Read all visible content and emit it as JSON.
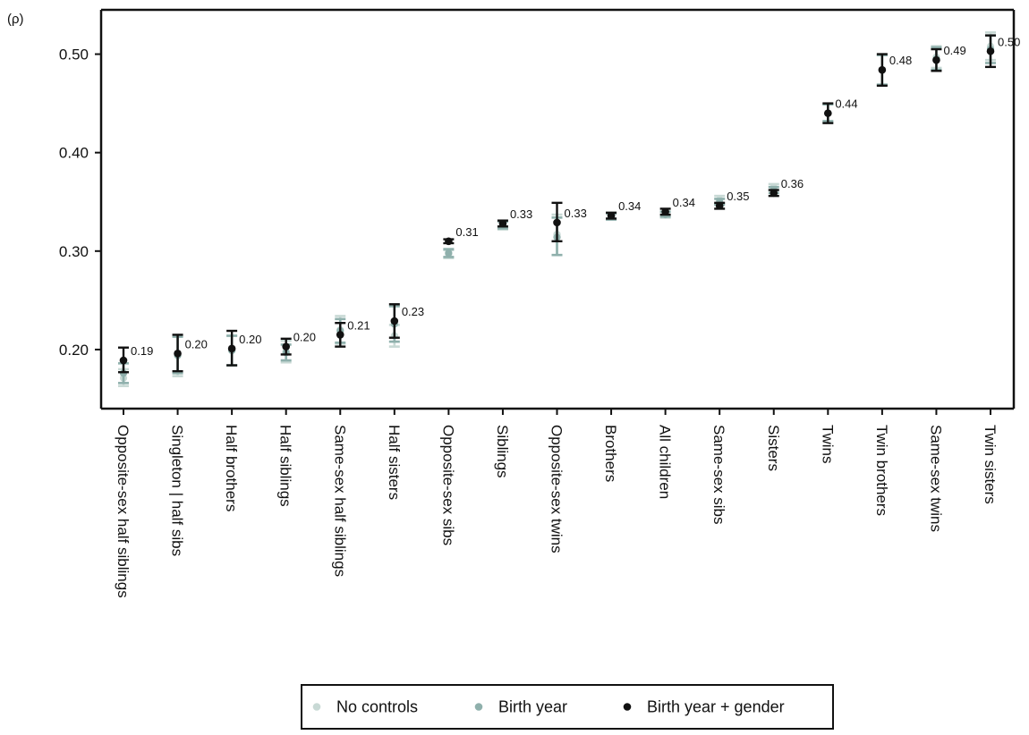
{
  "chart_data": {
    "type": "scatter",
    "y_unit": "(ρ)",
    "ylim": [
      0.14,
      0.545
    ],
    "y_ticks": [
      "0.20",
      "0.30",
      "0.40",
      "0.50"
    ],
    "grid": false,
    "legend_placement": "bottom-center",
    "categories": [
      "Opposite-sex half siblings",
      "Singleton | half sibs",
      "Half brothers",
      "Half siblings",
      "Same-sex half siblings",
      "Half sisters",
      "Opposite-sex sibs",
      "Siblings",
      "Opposite-sex twins",
      "Brothers",
      "All children",
      "Same-sex sibs",
      "Sisters",
      "Twins",
      "Twin brothers",
      "Same-sex twins",
      "Twin sisters"
    ],
    "series": [
      {
        "name": "No controls",
        "color": "#c8d9d5",
        "values": [
          0.171,
          0.194,
          0.199,
          0.198,
          0.22,
          0.214,
          0.297,
          0.326,
          0.317,
          0.336,
          0.337,
          0.352,
          0.365,
          0.44,
          0.484,
          0.497,
          0.508
        ],
        "ci_low": [
          0.163,
          0.173,
          0.184,
          0.187,
          0.206,
          0.203,
          0.293,
          0.322,
          0.296,
          0.333,
          0.334,
          0.348,
          0.362,
          0.431,
          0.469,
          0.486,
          0.494
        ],
        "ci_high": [
          0.18,
          0.214,
          0.214,
          0.209,
          0.234,
          0.225,
          0.301,
          0.33,
          0.337,
          0.339,
          0.34,
          0.356,
          0.368,
          0.449,
          0.499,
          0.508,
          0.522
        ]
      },
      {
        "name": "Birth year",
        "color": "#8fb0ac",
        "values": [
          0.176,
          0.194,
          0.199,
          0.197,
          0.219,
          0.226,
          0.298,
          0.326,
          0.314,
          0.335,
          0.337,
          0.35,
          0.362,
          0.44,
          0.484,
          0.495,
          0.505
        ],
        "ci_low": [
          0.166,
          0.176,
          0.184,
          0.189,
          0.207,
          0.208,
          0.294,
          0.323,
          0.296,
          0.332,
          0.335,
          0.347,
          0.359,
          0.432,
          0.469,
          0.484,
          0.491
        ],
        "ci_high": [
          0.186,
          0.213,
          0.214,
          0.205,
          0.231,
          0.244,
          0.302,
          0.33,
          0.334,
          0.338,
          0.34,
          0.353,
          0.365,
          0.449,
          0.499,
          0.507,
          0.519
        ]
      },
      {
        "name": "Birth year + gender",
        "color": "#111111",
        "values": [
          0.189,
          0.196,
          0.201,
          0.203,
          0.215,
          0.229,
          0.31,
          0.328,
          0.329,
          0.336,
          0.34,
          0.346,
          0.359,
          0.44,
          0.484,
          0.494,
          0.503
        ],
        "ci_low": [
          0.177,
          0.178,
          0.184,
          0.195,
          0.203,
          0.212,
          0.308,
          0.325,
          0.31,
          0.333,
          0.337,
          0.343,
          0.356,
          0.43,
          0.468,
          0.483,
          0.487
        ],
        "ci_high": [
          0.202,
          0.215,
          0.219,
          0.211,
          0.227,
          0.246,
          0.312,
          0.331,
          0.349,
          0.339,
          0.343,
          0.349,
          0.362,
          0.45,
          0.5,
          0.505,
          0.519
        ]
      }
    ],
    "value_labels": [
      "0.19",
      "0.20",
      "0.20",
      "0.20",
      "0.21",
      "0.23",
      "0.31",
      "0.33",
      "0.33",
      "0.34",
      "0.34",
      "0.35",
      "0.36",
      "0.44",
      "0.48",
      "0.49",
      "0.50"
    ]
  }
}
